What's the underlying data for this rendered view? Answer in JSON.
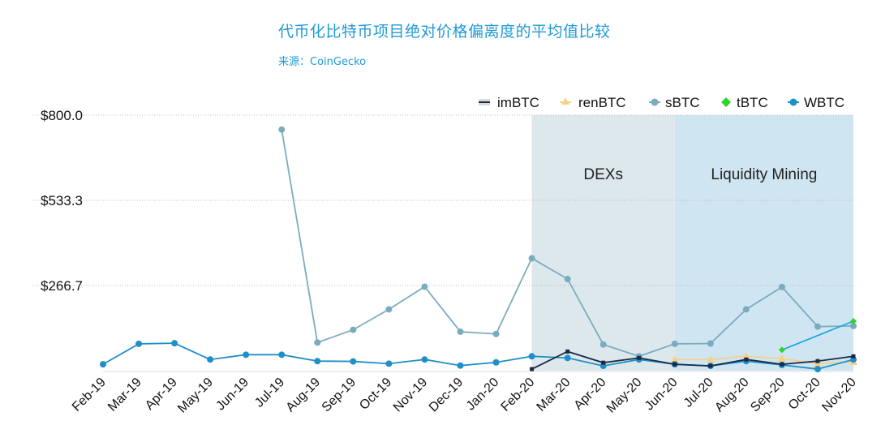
{
  "title": "代币化比特币项目绝对价格偏离度的平均值比较",
  "subtitle": "来源：CoinGecko",
  "chart_data": {
    "type": "line",
    "categories": [
      "Feb-19",
      "Mar-19",
      "Apr-19",
      "May-19",
      "Jun-19",
      "Jul-19",
      "Aug-19",
      "Sep-19",
      "Oct-19",
      "Nov-19",
      "Dec-19",
      "Jan-20",
      "Feb-20",
      "Mar-20",
      "Apr-20",
      "May-20",
      "Jun-20",
      "Jul-20",
      "Aug-20",
      "Sep-20",
      "Oct-20",
      "Nov-20"
    ],
    "ylim": [
      0,
      800
    ],
    "yticks": [
      "$800.0",
      "$533.3",
      "$266.7"
    ],
    "ytick_values": [
      800,
      533.3,
      266.7
    ],
    "legend_position": "top-right",
    "grid": true,
    "bands": [
      {
        "label": "DEXs",
        "from": "Feb-20",
        "to": "Jun-20",
        "color": "#dde8ec"
      },
      {
        "label": "Liquidity Mining",
        "from": "Jun-20",
        "to": "Nov-20",
        "color": "#cfe6f2"
      }
    ],
    "series": [
      {
        "name": "imBTC",
        "color": "#1d2a44",
        "marker": "square",
        "values": [
          null,
          null,
          null,
          null,
          null,
          null,
          null,
          null,
          null,
          null,
          null,
          null,
          5,
          60,
          25,
          40,
          20,
          15,
          35,
          20,
          30,
          45
        ]
      },
      {
        "name": "renBTC",
        "color": "#f5d08a",
        "marker": "triangle",
        "values": [
          null,
          null,
          null,
          null,
          null,
          null,
          null,
          null,
          null,
          null,
          null,
          null,
          null,
          null,
          null,
          null,
          35,
          35,
          45,
          38,
          22,
          28
        ]
      },
      {
        "name": "sBTC",
        "color": "#7aacbe",
        "marker": "circle",
        "values": [
          null,
          null,
          null,
          null,
          null,
          755,
          88,
          128,
          192,
          263,
          122,
          115,
          352,
          287,
          82,
          45,
          84,
          85,
          192,
          262,
          138,
          140
        ]
      },
      {
        "name": "tBTC",
        "color": "#2ad628",
        "marker": "diamond",
        "values": [
          null,
          null,
          null,
          null,
          null,
          null,
          null,
          null,
          null,
          null,
          null,
          null,
          null,
          null,
          null,
          null,
          null,
          null,
          null,
          65,
          null,
          155
        ]
      },
      {
        "name": "WBTC",
        "color": "#1f8fc8",
        "marker": "circle",
        "values": [
          20,
          84,
          86,
          35,
          50,
          50,
          30,
          29,
          22,
          35,
          16,
          26,
          45,
          40,
          15,
          35,
          20,
          15,
          30,
          18,
          5,
          35
        ]
      }
    ]
  }
}
